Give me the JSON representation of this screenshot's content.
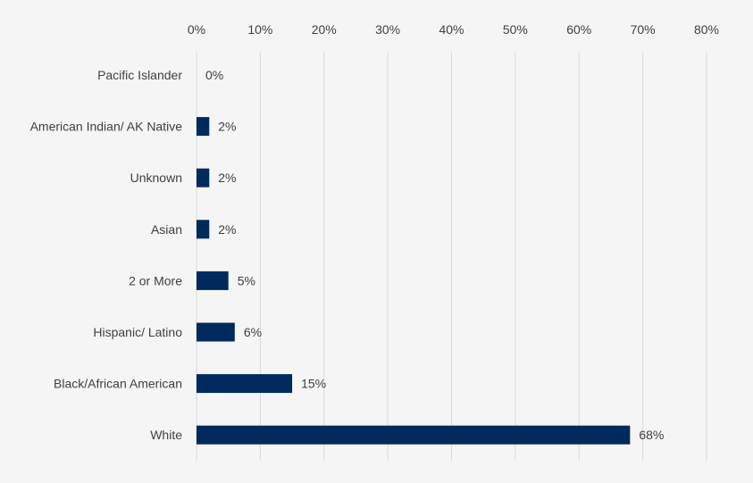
{
  "chart_data": {
    "type": "bar",
    "orientation": "horizontal",
    "categories": [
      "Pacific Islander",
      "American Indian/ AK Native",
      "Unknown",
      "Asian",
      "2 or More",
      "Hispanic/ Latino",
      "Black/African American",
      "White"
    ],
    "values": [
      0,
      2,
      2,
      2,
      5,
      6,
      15,
      68
    ],
    "data_labels": [
      "0%",
      "2%",
      "2%",
      "2%",
      "5%",
      "6%",
      "15%",
      "68%"
    ],
    "x_ticks": [
      0,
      10,
      20,
      30,
      40,
      50,
      60,
      70,
      80
    ],
    "x_tick_labels": [
      "0%",
      "10%",
      "20%",
      "30%",
      "40%",
      "50%",
      "60%",
      "70%",
      "80%"
    ],
    "xlim": [
      0,
      80
    ],
    "x_axis_position": "top",
    "grid": true,
    "legend": "none",
    "bar_color": "#002a5c",
    "background_color": "#f5f5f5"
  }
}
